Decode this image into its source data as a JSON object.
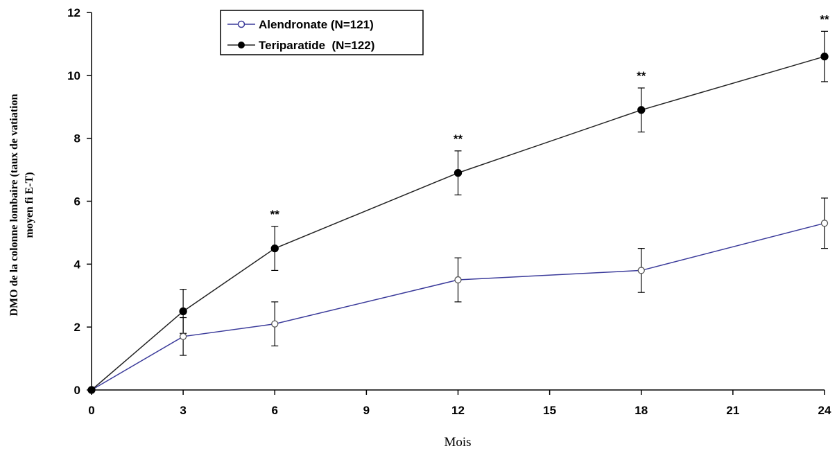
{
  "chart_data": {
    "type": "line",
    "xlabel": "Mois",
    "ylabel_line1": "DMO de la colonne lombaire (taux de vatiation",
    "ylabel_line2": "moyen fi E-T)",
    "xlim": [
      0,
      24
    ],
    "ylim": [
      0,
      12
    ],
    "xticks": [
      0,
      3,
      6,
      9,
      12,
      15,
      18,
      21,
      24
    ],
    "yticks": [
      0,
      2,
      4,
      6,
      8,
      10,
      12
    ],
    "grid": false,
    "legend_position": "top-center",
    "series": [
      {
        "name": "Alendronate (N=121)",
        "color": "#3a3a9a",
        "marker": "open-circle",
        "x": [
          0,
          3,
          6,
          12,
          18,
          24
        ],
        "y": [
          0,
          1.7,
          2.1,
          3.5,
          3.8,
          5.3
        ],
        "err_low": [
          0,
          0.6,
          0.7,
          0.7,
          0.7,
          0.8
        ],
        "err_high": [
          0,
          0.6,
          0.7,
          0.7,
          0.7,
          0.8
        ]
      },
      {
        "name": "Teriparatide  (N=122)",
        "color": "#222222",
        "marker": "filled-circle",
        "x": [
          0,
          3,
          6,
          12,
          18,
          24
        ],
        "y": [
          0,
          2.5,
          4.5,
          6.9,
          8.9,
          10.6
        ],
        "err_low": [
          0,
          0.7,
          0.7,
          0.7,
          0.7,
          0.8
        ],
        "err_high": [
          0,
          0.7,
          0.7,
          0.7,
          0.7,
          0.8
        ]
      }
    ],
    "annotations": [
      {
        "x": 6,
        "text": "**"
      },
      {
        "x": 12,
        "text": "**"
      },
      {
        "x": 18,
        "text": "**"
      },
      {
        "x": 24,
        "text": "**"
      }
    ]
  }
}
